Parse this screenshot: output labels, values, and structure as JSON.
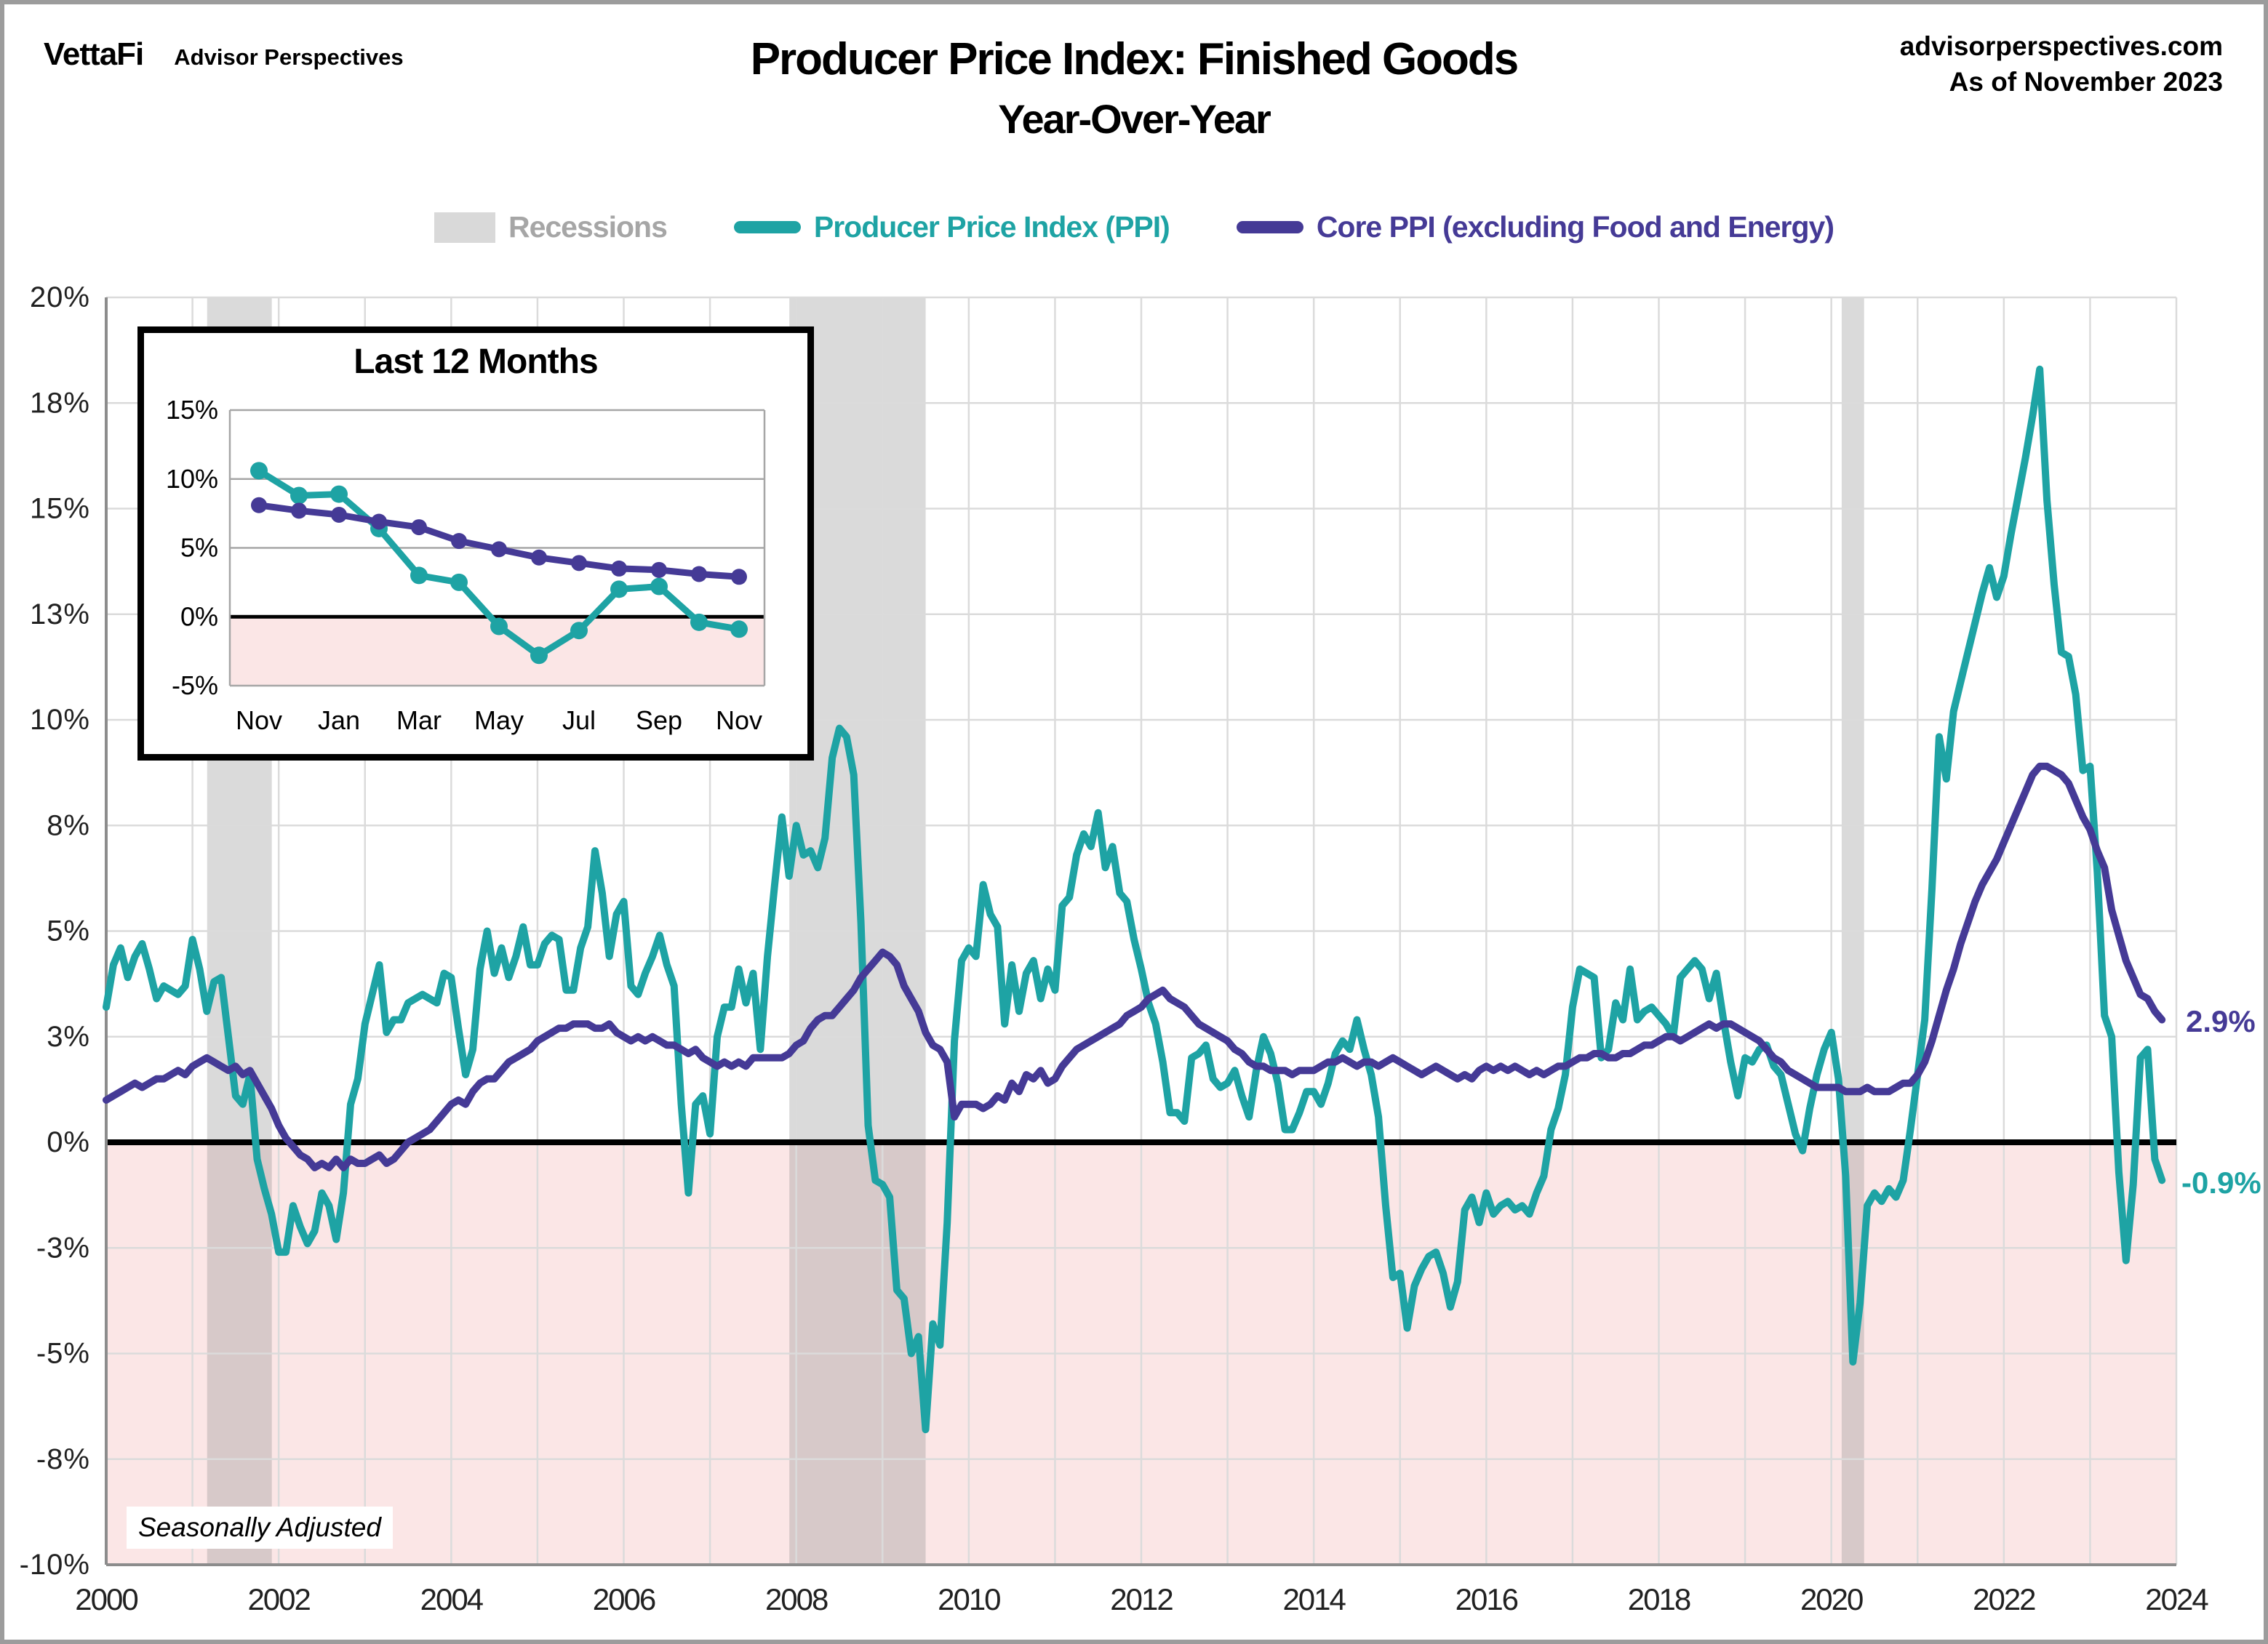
{
  "header": {
    "brand": "VettaFi",
    "brand_sub": "Advisor Perspectives",
    "source_line1": "advisorperspectives.com",
    "source_line2": "As of November 2023"
  },
  "title": {
    "line1": "Producer Price Index: Finished Goods",
    "line2": "Year-Over-Year"
  },
  "legend": {
    "items": [
      {
        "label": "Recessions",
        "type": "patch",
        "color": "#d9d9d9",
        "text_color": "#a6a6a6"
      },
      {
        "label": "Producer Price Index (PPI)",
        "type": "line",
        "color": "#1EA3A4",
        "text_color": "#1EA3A4"
      },
      {
        "label": "Core PPI (excluding Food and Energy)",
        "type": "line",
        "color": "#453A96",
        "text_color": "#453A96"
      }
    ]
  },
  "annotations": {
    "core_end": "2.9%",
    "ppi_end": "-0.9%"
  },
  "footnote": {
    "text": "Seasonally Adjusted"
  },
  "colors": {
    "ppi": "#1EA3A4",
    "core": "#453A96",
    "negative_fill": "#FBE6E6",
    "recession_fill": "rgba(140,140,140,0.32)",
    "gridline": "#DBDBDB",
    "axis": "#8C8C8C",
    "tick_text": "#212121",
    "inset_grid": "#A6A6A6",
    "zero_line": "#000000"
  },
  "chart_data": [
    {
      "type": "line",
      "title": "Producer Price Index: Finished Goods Year-Over-Year",
      "xlabel": "",
      "ylabel": "",
      "xlim": [
        2000,
        2024
      ],
      "ylim": [
        -10,
        20
      ],
      "grid": true,
      "x_tick_labels": [
        "2000",
        "2002",
        "2004",
        "2006",
        "2008",
        "2010",
        "2012",
        "2014",
        "2016",
        "2018",
        "2020",
        "2022",
        "2024"
      ],
      "x_tick_values": [
        2000,
        2002,
        2004,
        2006,
        2008,
        2010,
        2012,
        2014,
        2016,
        2018,
        2020,
        2022,
        2024
      ],
      "y_tick_values": [
        20,
        17.5,
        15,
        12.5,
        10,
        7.5,
        5,
        2.5,
        0,
        -2.5,
        -5,
        -7.5,
        -10
      ],
      "y_tick_labels": [
        "20%",
        "18%",
        "15%",
        "13%",
        "10%",
        "8%",
        "5%",
        "3%",
        "0%",
        "-3%",
        "-5%",
        "-8%",
        "-10%"
      ],
      "recessions": [
        [
          2001.17,
          2001.92
        ],
        [
          2007.92,
          2009.5
        ],
        [
          2020.12,
          2020.38
        ]
      ],
      "series": [
        {
          "name": "Producer Price Index (PPI)",
          "color": "#1EA3A4",
          "end_label": "-0.9%",
          "values_by_year": {
            "2000": [
              3.2,
              4.2,
              4.6,
              3.9,
              4.4,
              4.7,
              4.1,
              3.4,
              3.7,
              3.6,
              3.5,
              3.7
            ],
            "2001": [
              4.8,
              4.1,
              3.1,
              3.8,
              3.9,
              2.5,
              1.1,
              0.9,
              1.6,
              -0.4,
              -1.1,
              -1.7
            ],
            "2002": [
              -2.6,
              -2.6,
              -1.5,
              -2.0,
              -2.4,
              -2.1,
              -1.2,
              -1.5,
              -2.3,
              -1.2,
              0.9,
              1.5
            ],
            "2003": [
              2.8,
              3.5,
              4.2,
              2.6,
              2.9,
              2.9,
              3.3,
              3.4,
              3.5,
              3.4,
              3.3,
              4.0
            ],
            "2004": [
              3.9,
              2.7,
              1.6,
              2.2,
              4.1,
              5.0,
              4.0,
              4.6,
              3.9,
              4.4,
              5.1,
              4.2
            ],
            "2005": [
              4.2,
              4.7,
              4.9,
              4.8,
              3.6,
              3.6,
              4.6,
              5.1,
              6.9,
              5.9,
              4.4,
              5.4
            ],
            "2006": [
              5.7,
              3.7,
              3.5,
              4.0,
              4.4,
              4.9,
              4.2,
              3.7,
              0.9,
              -1.2,
              0.9,
              1.1
            ],
            "2007": [
              0.2,
              2.5,
              3.2,
              3.2,
              4.1,
              3.3,
              4.0,
              2.2,
              4.4,
              6.1,
              7.7,
              6.3
            ],
            "2008": [
              7.5,
              6.8,
              6.9,
              6.5,
              7.2,
              9.1,
              9.8,
              9.6,
              8.7,
              5.2,
              0.4,
              -0.9
            ],
            "2009": [
              -1.0,
              -1.3,
              -3.5,
              -3.7,
              -5.0,
              -4.6,
              -6.8,
              -4.3,
              -4.8,
              -1.9,
              2.4,
              4.3
            ],
            "2010": [
              4.6,
              4.4,
              6.1,
              5.4,
              5.1,
              2.8,
              4.2,
              3.1,
              4.0,
              4.3,
              3.4,
              4.1
            ],
            "2011": [
              3.6,
              5.6,
              5.8,
              6.8,
              7.3,
              7.0,
              7.8,
              6.5,
              7.0,
              5.9,
              5.7,
              4.8
            ],
            "2012": [
              4.1,
              3.3,
              2.8,
              1.9,
              0.7,
              0.7,
              0.5,
              2.0,
              2.1,
              2.3,
              1.5,
              1.3
            ],
            "2013": [
              1.4,
              1.7,
              1.1,
              0.6,
              1.7,
              2.5,
              2.1,
              1.4,
              0.3,
              0.3,
              0.7,
              1.2
            ],
            "2014": [
              1.2,
              0.9,
              1.4,
              2.1,
              2.4,
              2.2,
              2.9,
              2.2,
              1.6,
              0.6,
              -1.5,
              -3.2
            ],
            "2015": [
              -3.1,
              -4.4,
              -3.4,
              -3.0,
              -2.7,
              -2.6,
              -3.1,
              -3.9,
              -3.3,
              -1.6,
              -1.3,
              -1.9
            ],
            "2016": [
              -1.2,
              -1.7,
              -1.5,
              -1.4,
              -1.6,
              -1.5,
              -1.7,
              -1.2,
              -0.8,
              0.3,
              0.8,
              1.6
            ],
            "2017": [
              3.2,
              4.1,
              4.0,
              3.9,
              2.0,
              2.2,
              3.3,
              2.9,
              4.1,
              2.9,
              3.1,
              3.2
            ],
            "2018": [
              3.0,
              2.8,
              2.5,
              3.9,
              4.1,
              4.3,
              4.1,
              3.4,
              4.0,
              2.9,
              1.9,
              1.1
            ],
            "2019": [
              2.0,
              1.9,
              2.2,
              2.3,
              1.8,
              1.6,
              0.9,
              0.2,
              -0.2,
              0.8,
              1.6,
              2.2
            ],
            "2020": [
              2.6,
              1.5,
              -0.8,
              -5.2,
              -3.8,
              -1.5,
              -1.2,
              -1.4,
              -1.1,
              -1.3,
              -0.9,
              0.3
            ],
            "2021": [
              1.6,
              2.9,
              6.0,
              9.6,
              8.6,
              10.2,
              10.9,
              11.6,
              12.3,
              13.0,
              13.6,
              12.9
            ],
            "2022": [
              13.4,
              14.4,
              15.3,
              16.2,
              17.2,
              18.3,
              15.2,
              13.2,
              11.6,
              11.5,
              10.6,
              8.8
            ],
            "2023": [
              8.9,
              6.4,
              3.0,
              2.5,
              -0.7,
              -2.8,
              -1.0,
              2.0,
              2.2,
              -0.4,
              -0.9
            ]
          }
        },
        {
          "name": "Core PPI (excluding Food and Energy)",
          "color": "#453A96",
          "end_label": "2.9%",
          "values_by_year": {
            "2000": [
              1.0,
              1.1,
              1.2,
              1.3,
              1.4,
              1.3,
              1.4,
              1.5,
              1.5,
              1.6,
              1.7,
              1.6
            ],
            "2001": [
              1.8,
              1.9,
              2.0,
              1.9,
              1.8,
              1.7,
              1.8,
              1.6,
              1.7,
              1.4,
              1.1,
              0.8
            ],
            "2002": [
              0.4,
              0.1,
              -0.1,
              -0.3,
              -0.4,
              -0.6,
              -0.5,
              -0.6,
              -0.4,
              -0.6,
              -0.4,
              -0.5
            ],
            "2003": [
              -0.5,
              -0.4,
              -0.3,
              -0.5,
              -0.4,
              -0.2,
              0.0,
              0.1,
              0.2,
              0.3,
              0.5,
              0.7
            ],
            "2004": [
              0.9,
              1.0,
              0.9,
              1.2,
              1.4,
              1.5,
              1.5,
              1.7,
              1.9,
              2.0,
              2.1,
              2.2
            ],
            "2005": [
              2.4,
              2.5,
              2.6,
              2.7,
              2.7,
              2.8,
              2.8,
              2.8,
              2.7,
              2.7,
              2.8,
              2.6
            ],
            "2006": [
              2.5,
              2.4,
              2.5,
              2.4,
              2.5,
              2.4,
              2.3,
              2.3,
              2.2,
              2.1,
              2.2,
              2.0
            ],
            "2007": [
              1.9,
              1.8,
              1.9,
              1.8,
              1.9,
              1.8,
              2.0,
              2.0,
              2.0,
              2.0,
              2.0,
              2.1
            ],
            "2008": [
              2.3,
              2.4,
              2.7,
              2.9,
              3.0,
              3.0,
              3.2,
              3.4,
              3.6,
              3.9,
              4.1,
              4.3
            ],
            "2009": [
              4.5,
              4.4,
              4.2,
              3.7,
              3.4,
              3.1,
              2.6,
              2.3,
              2.2,
              1.9,
              0.6,
              0.9
            ],
            "2010": [
              0.9,
              0.9,
              0.8,
              0.9,
              1.1,
              1.0,
              1.4,
              1.2,
              1.6,
              1.5,
              1.7,
              1.4
            ],
            "2011": [
              1.5,
              1.8,
              2.0,
              2.2,
              2.3,
              2.4,
              2.5,
              2.6,
              2.7,
              2.8,
              3.0,
              3.1
            ],
            "2012": [
              3.2,
              3.4,
              3.5,
              3.6,
              3.4,
              3.3,
              3.2,
              3.0,
              2.8,
              2.7,
              2.6,
              2.5
            ],
            "2013": [
              2.4,
              2.2,
              2.1,
              1.9,
              1.8,
              1.8,
              1.7,
              1.7,
              1.7,
              1.6,
              1.7,
              1.7
            ],
            "2014": [
              1.7,
              1.8,
              1.9,
              1.9,
              2.0,
              1.9,
              1.8,
              1.9,
              1.9,
              1.8,
              1.9,
              2.0
            ],
            "2015": [
              1.9,
              1.8,
              1.7,
              1.6,
              1.7,
              1.8,
              1.7,
              1.6,
              1.5,
              1.6,
              1.5,
              1.7
            ],
            "2016": [
              1.8,
              1.7,
              1.8,
              1.7,
              1.8,
              1.7,
              1.6,
              1.7,
              1.6,
              1.7,
              1.8,
              1.8
            ],
            "2017": [
              1.9,
              2.0,
              2.0,
              2.1,
              2.1,
              2.0,
              2.0,
              2.1,
              2.1,
              2.2,
              2.3,
              2.3
            ],
            "2018": [
              2.4,
              2.5,
              2.5,
              2.4,
              2.5,
              2.6,
              2.7,
              2.8,
              2.7,
              2.8,
              2.8,
              2.7
            ],
            "2019": [
              2.6,
              2.5,
              2.4,
              2.2,
              2.0,
              1.9,
              1.7,
              1.6,
              1.5,
              1.4,
              1.3,
              1.3
            ],
            "2020": [
              1.3,
              1.3,
              1.2,
              1.2,
              1.2,
              1.3,
              1.2,
              1.2,
              1.2,
              1.3,
              1.4,
              1.4
            ],
            "2021": [
              1.6,
              1.9,
              2.4,
              3.0,
              3.6,
              4.1,
              4.7,
              5.2,
              5.7,
              6.1,
              6.4,
              6.7
            ],
            "2022": [
              7.1,
              7.5,
              7.9,
              8.3,
              8.7,
              8.9,
              8.9,
              8.8,
              8.7,
              8.5,
              8.1,
              7.7
            ],
            "2023": [
              7.4,
              6.9,
              6.5,
              5.5,
              4.9,
              4.3,
              3.9,
              3.5,
              3.4,
              3.1,
              2.9
            ]
          }
        }
      ]
    },
    {
      "type": "line",
      "title": "Last 12 Months",
      "categories": [
        "Nov",
        "Dec",
        "Jan",
        "Feb",
        "Mar",
        "Apr",
        "May",
        "Jun",
        "Jul",
        "Aug",
        "Sep",
        "Oct",
        "Nov"
      ],
      "shown_x_tick_labels": [
        "Nov",
        "Jan",
        "Mar",
        "May",
        "Jul",
        "Sep",
        "Nov"
      ],
      "shown_x_tick_indices": [
        0,
        2,
        4,
        6,
        8,
        10,
        12
      ],
      "ylim": [
        -5,
        15
      ],
      "y_tick_values": [
        15,
        10,
        5,
        0,
        -5
      ],
      "y_tick_labels": [
        "15%",
        "10%",
        "5%",
        "0%",
        "-5%"
      ],
      "series": [
        {
          "name": "Producer Price Index (PPI)",
          "color": "#1EA3A4",
          "values": [
            10.6,
            8.8,
            8.9,
            6.4,
            3.0,
            2.5,
            -0.7,
            -2.8,
            -1.0,
            2.0,
            2.2,
            -0.4,
            -0.9
          ]
        },
        {
          "name": "Core PPI (excluding Food and Energy)",
          "color": "#453A96",
          "values": [
            8.1,
            7.7,
            7.4,
            6.9,
            6.5,
            5.5,
            4.9,
            4.3,
            3.9,
            3.5,
            3.4,
            3.1,
            2.9
          ]
        }
      ]
    }
  ]
}
